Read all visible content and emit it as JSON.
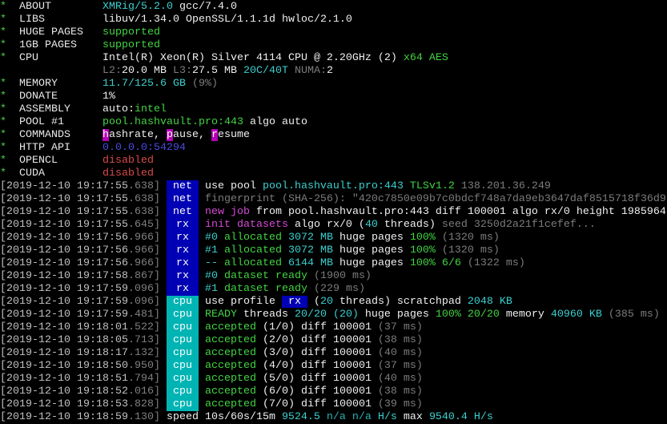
{
  "colors": {
    "w": "#f0f0f0",
    "g": "#c0c0c0",
    "d": "#7c7c7c",
    "c": "#3ccfcf",
    "G": "#42d442",
    "r": "#d84a4a",
    "b": "#4a4ae0",
    "m": "#d44ad4",
    "tag_blue": "#0000b4",
    "tag_cyan": "#00b4b4",
    "highlight_magenta": "#b400b4"
  },
  "header": [
    {
      "star": "*",
      "label": "ABOUT",
      "value": [
        [
          "XMRig/5.2.0",
          "c"
        ],
        [
          " gcc/7.4.0",
          "w"
        ]
      ]
    },
    {
      "star": "*",
      "label": "LIBS",
      "value": [
        [
          "libuv/1.34.0 OpenSSL/1.1.1d hwloc/2.1.0",
          "w"
        ]
      ]
    },
    {
      "star": "*",
      "label": "HUGE PAGES",
      "value": [
        [
          "supported",
          "G"
        ]
      ]
    },
    {
      "star": "*",
      "label": "1GB PAGES",
      "value": [
        [
          "supported",
          "G"
        ]
      ]
    },
    {
      "star": "*",
      "label": "CPU",
      "value": [
        [
          "Intel(R) Xeon(R) Silver 4114 CPU @ 2.20GHz (2) ",
          "w"
        ],
        [
          "x64 AES",
          "G"
        ]
      ]
    },
    {
      "star": "",
      "label": "",
      "value": [
        [
          "L2:",
          "d"
        ],
        [
          "20.0 MB ",
          "w"
        ],
        [
          "L3:",
          "d"
        ],
        [
          "27.5 MB ",
          "w"
        ],
        [
          "20C/40T ",
          "c"
        ],
        [
          "NUMA:",
          "d"
        ],
        [
          "2",
          "w"
        ]
      ]
    },
    {
      "star": "*",
      "label": "MEMORY",
      "value": [
        [
          "11.7/125.6 GB ",
          "c"
        ],
        [
          "(9%)",
          "d"
        ]
      ]
    },
    {
      "star": "*",
      "label": "DONATE",
      "value": [
        [
          "1%",
          "w"
        ]
      ]
    },
    {
      "star": "*",
      "label": "ASSEMBLY",
      "value": [
        [
          "auto:",
          "w"
        ],
        [
          "intel",
          "G"
        ]
      ]
    },
    {
      "star": "*",
      "label": "POOL #1",
      "value": [
        [
          "pool.hashvault.pro:443",
          "G"
        ],
        [
          " algo auto",
          "w"
        ]
      ]
    },
    {
      "star": "*",
      "label": "COMMANDS",
      "value": [
        [
          "h",
          "M"
        ],
        [
          "ashrate, ",
          "w"
        ],
        [
          "p",
          "M"
        ],
        [
          "ause, ",
          "w"
        ],
        [
          "r",
          "M"
        ],
        [
          "esume",
          "w"
        ]
      ]
    },
    {
      "star": "*",
      "label": "HTTP API",
      "value": [
        [
          "0.0.0.0:54294",
          "b"
        ]
      ]
    },
    {
      "star": "*",
      "label": "OPENCL",
      "value": [
        [
          "disabled",
          "r"
        ]
      ]
    },
    {
      "star": "*",
      "label": "CUDA",
      "value": [
        [
          "disabled",
          "r"
        ]
      ]
    }
  ],
  "log": [
    {
      "ts": "[2019-12-10 19:17:55",
      "ms": ".638]",
      "tag": "net",
      "msg": [
        [
          "use pool ",
          "w"
        ],
        [
          "pool.hashvault.pro:443 ",
          "c"
        ],
        [
          "TLSv1.2 ",
          "G"
        ],
        [
          "138.201.36.249",
          "d"
        ]
      ]
    },
    {
      "ts": "[2019-12-10 19:17:55",
      "ms": ".638]",
      "tag": "net",
      "msg": [
        [
          "fingerprint (SHA-256): \"420c7850e09b7c0bdcf748a7da9eb3647daf8515718f36d9",
          "d"
        ]
      ]
    },
    {
      "ts": "[2019-12-10 19:17:55",
      "ms": ".638]",
      "tag": "net",
      "msg": [
        [
          "new job",
          "m"
        ],
        [
          " from pool.hashvault.pro:443 diff 100001 algo rx/0 height 1985964",
          "w"
        ]
      ]
    },
    {
      "ts": "[2019-12-10 19:17:55",
      "ms": ".645]",
      "tag": "rx",
      "msg": [
        [
          "init datasets",
          "m"
        ],
        [
          " algo rx/0 (",
          "w"
        ],
        [
          "40",
          "c"
        ],
        [
          " threads)",
          "w"
        ],
        [
          " seed 3250d2a21f1cefef...",
          "d"
        ]
      ]
    },
    {
      "ts": "[2019-12-10 19:17:56",
      "ms": ".966]",
      "tag": "rx",
      "msg": [
        [
          "#0",
          "c"
        ],
        [
          " allocated ",
          "G"
        ],
        [
          "3072 MB",
          "c"
        ],
        [
          " huge pages ",
          "w"
        ],
        [
          "100%",
          "G"
        ],
        [
          " (1320 ms)",
          "d"
        ]
      ]
    },
    {
      "ts": "[2019-12-10 19:17:56",
      "ms": ".966]",
      "tag": "rx",
      "msg": [
        [
          "#1",
          "c"
        ],
        [
          " allocated ",
          "G"
        ],
        [
          "3072 MB",
          "c"
        ],
        [
          " huge pages ",
          "w"
        ],
        [
          "100%",
          "G"
        ],
        [
          " (1320 ms)",
          "d"
        ]
      ]
    },
    {
      "ts": "[2019-12-10 19:17:56",
      "ms": ".966]",
      "tag": "rx",
      "msg": [
        [
          "--",
          "c"
        ],
        [
          " allocated ",
          "G"
        ],
        [
          "6144 MB",
          "c"
        ],
        [
          " huge pages ",
          "w"
        ],
        [
          "100% 6/6",
          "G"
        ],
        [
          " (1322 ms)",
          "d"
        ]
      ]
    },
    {
      "ts": "[2019-12-10 19:17:58",
      "ms": ".867]",
      "tag": "rx",
      "msg": [
        [
          "#0",
          "c"
        ],
        [
          " dataset ready",
          "G"
        ],
        [
          " (1900 ms)",
          "d"
        ]
      ]
    },
    {
      "ts": "[2019-12-10 19:17:59",
      "ms": ".096]",
      "tag": "rx",
      "msg": [
        [
          "#1",
          "c"
        ],
        [
          " dataset ready",
          "G"
        ],
        [
          " (229 ms)",
          "d"
        ]
      ]
    },
    {
      "ts": "[2019-12-10 19:17:59",
      "ms": ".096]",
      "tag": "cpu",
      "msg": [
        [
          "use profile ",
          "w"
        ],
        [
          " rx ",
          "B"
        ],
        [
          " (",
          "w"
        ],
        [
          "20",
          "c"
        ],
        [
          " threads) scratchpad ",
          "w"
        ],
        [
          "2048 KB",
          "c"
        ]
      ]
    },
    {
      "ts": "[2019-12-10 19:17:59",
      "ms": ".481]",
      "tag": "cpu",
      "msg": [
        [
          "READY",
          "G"
        ],
        [
          " threads ",
          "w"
        ],
        [
          "20/20 (20)",
          "c"
        ],
        [
          " huge pages ",
          "w"
        ],
        [
          "100% 20/20",
          "G"
        ],
        [
          " memory ",
          "w"
        ],
        [
          "40960 KB",
          "c"
        ],
        [
          " (385 ms)",
          "d"
        ]
      ]
    },
    {
      "ts": "[2019-12-10 19:18:01",
      "ms": ".522]",
      "tag": "cpu",
      "msg": [
        [
          "accepted",
          "G"
        ],
        [
          " (1/0) diff 100001",
          "w"
        ],
        [
          " (37 ms)",
          "d"
        ]
      ]
    },
    {
      "ts": "[2019-12-10 19:18:05",
      "ms": ".713]",
      "tag": "cpu",
      "msg": [
        [
          "accepted",
          "G"
        ],
        [
          " (2/0) diff 100001",
          "w"
        ],
        [
          " (38 ms)",
          "d"
        ]
      ]
    },
    {
      "ts": "[2019-12-10 19:18:17",
      "ms": ".132]",
      "tag": "cpu",
      "msg": [
        [
          "accepted",
          "G"
        ],
        [
          " (3/0) diff 100001",
          "w"
        ],
        [
          " (40 ms)",
          "d"
        ]
      ]
    },
    {
      "ts": "[2019-12-10 19:18:50",
      "ms": ".950]",
      "tag": "cpu",
      "msg": [
        [
          "accepted",
          "G"
        ],
        [
          " (4/0) diff 100001",
          "w"
        ],
        [
          " (37 ms)",
          "d"
        ]
      ]
    },
    {
      "ts": "[2019-12-10 19:18:51",
      "ms": ".794]",
      "tag": "cpu",
      "msg": [
        [
          "accepted",
          "G"
        ],
        [
          " (5/0) diff 100001",
          "w"
        ],
        [
          " (40 ms)",
          "d"
        ]
      ]
    },
    {
      "ts": "[2019-12-10 19:18:52",
      "ms": ".016]",
      "tag": "cpu",
      "msg": [
        [
          "accepted",
          "G"
        ],
        [
          " (6/0) diff 100001",
          "w"
        ],
        [
          " (38 ms)",
          "d"
        ]
      ]
    },
    {
      "ts": "[2019-12-10 19:18:53",
      "ms": ".828]",
      "tag": "cpu",
      "msg": [
        [
          "accepted",
          "G"
        ],
        [
          " (7/0) diff 100001",
          "w"
        ],
        [
          " (39 ms)",
          "d"
        ]
      ]
    },
    {
      "ts": "[2019-12-10 19:18:59",
      "ms": ".130]",
      "tag": "",
      "msg": [
        [
          " speed 10s/60s/15m ",
          "w"
        ],
        [
          "9524.5",
          "c"
        ],
        [
          " n/a n/a",
          "n"
        ],
        [
          " H/s",
          "c"
        ],
        [
          " max ",
          "w"
        ],
        [
          "9540.4 H/s",
          "c"
        ]
      ]
    }
  ]
}
